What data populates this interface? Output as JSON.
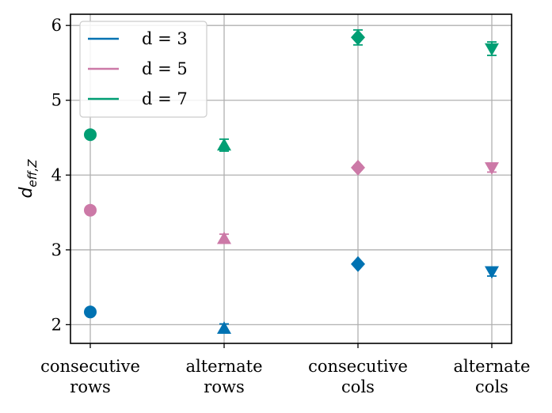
{
  "chart_data": {
    "type": "scatter",
    "categories": [
      "consecutive\nrows",
      "alternate\nrows",
      "consecutive\ncols",
      "alternate\ncols"
    ],
    "markers": [
      "circle",
      "triangle-up",
      "diamond",
      "triangle-down"
    ],
    "ylabel": "d_{eff,Z}",
    "ylim": [
      1.75,
      6.15
    ],
    "yticks": [
      2,
      3,
      4,
      5,
      6
    ],
    "grid": true,
    "legend": "top-left",
    "series": [
      {
        "name": "d = 3",
        "color": "#0072b2",
        "values": [
          2.17,
          1.95,
          2.81,
          2.71
        ],
        "errors": [
          0.02,
          0.06,
          0.02,
          0.06
        ]
      },
      {
        "name": "d = 5",
        "color": "#cc79a7",
        "values": [
          3.53,
          3.15,
          4.1,
          4.1
        ],
        "errors": [
          0.02,
          0.06,
          0.03,
          0.06
        ]
      },
      {
        "name": "d = 7",
        "color": "#009e73",
        "values": [
          4.54,
          4.4,
          5.84,
          5.69
        ],
        "errors": [
          0.02,
          0.08,
          0.1,
          0.09
        ]
      }
    ]
  }
}
